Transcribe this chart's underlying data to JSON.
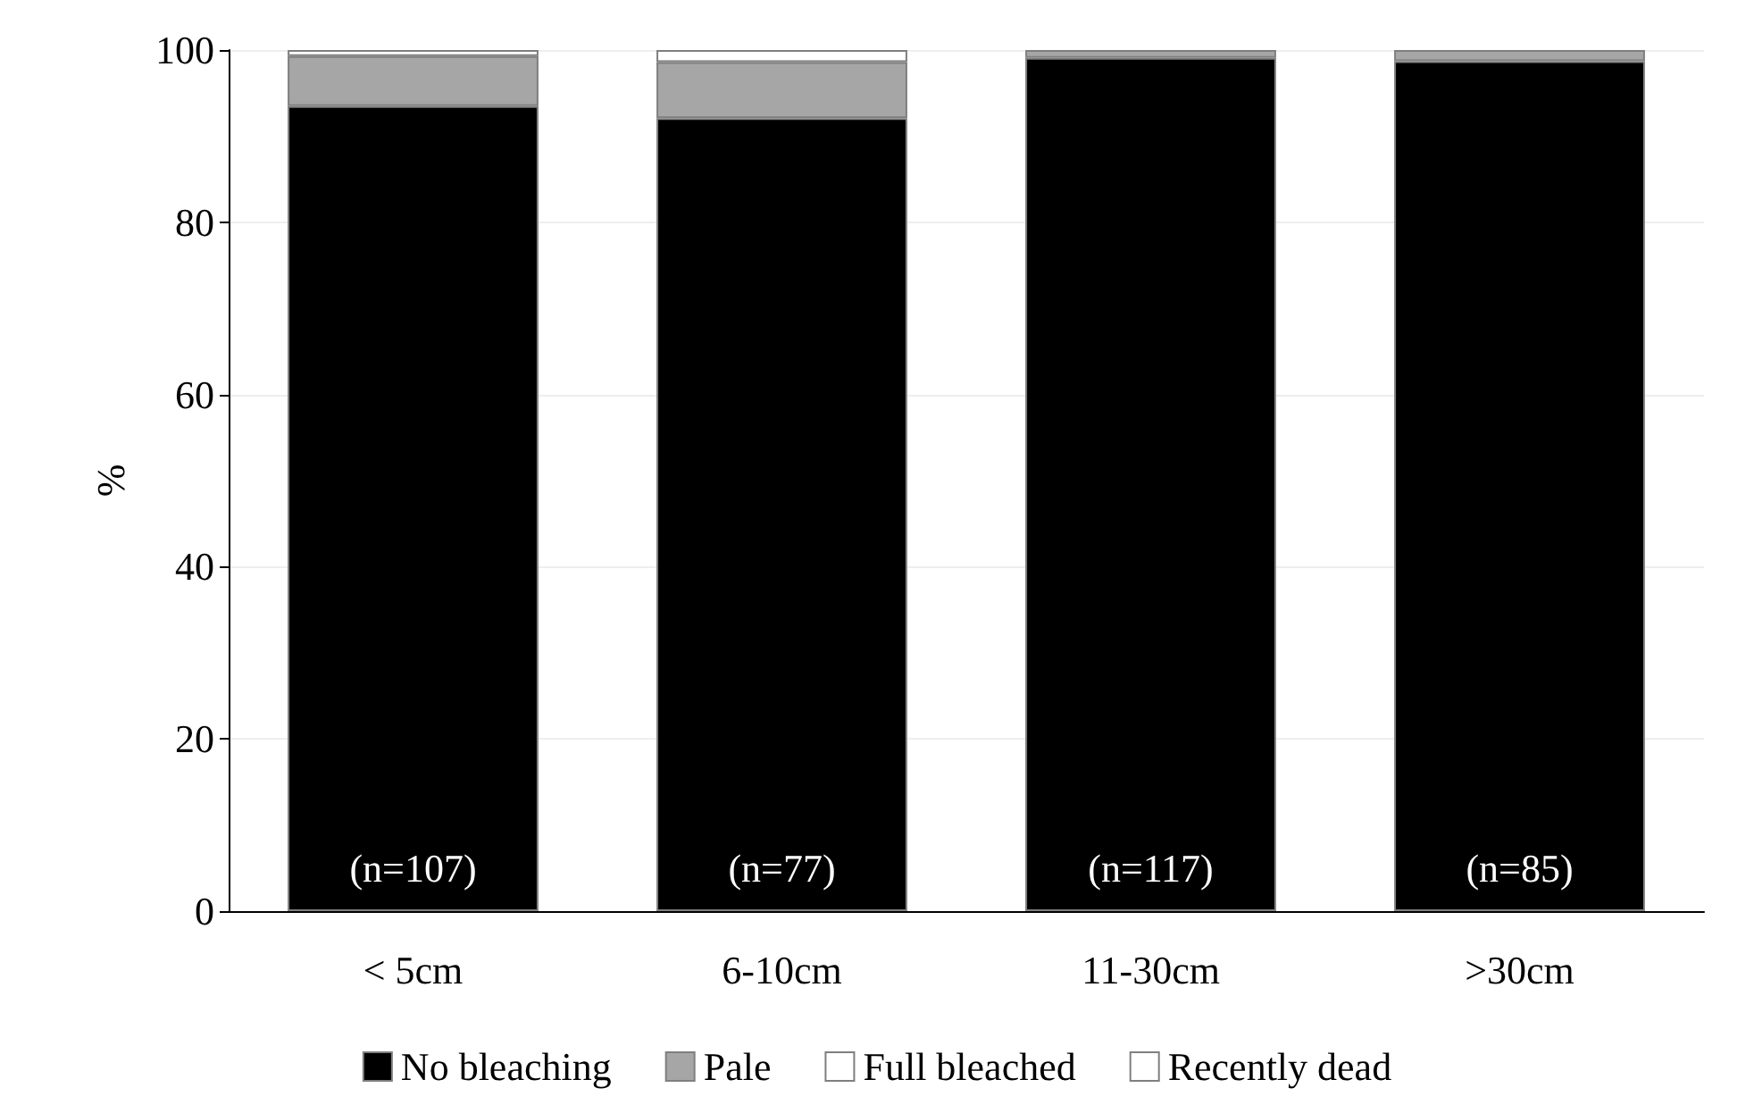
{
  "chart_data": {
    "type": "bar",
    "stacked": true,
    "ylabel": "%",
    "categories": [
      "< 5cm",
      "6-10cm",
      "11-30cm",
      ">30cm"
    ],
    "series": [
      {
        "name": "No bleaching",
        "color": "#000000",
        "values": [
          93.5,
          92.1,
          99.1,
          98.7
        ]
      },
      {
        "name": "Pale",
        "color": "#a6a6a6",
        "values": [
          5.8,
          6.5,
          0.9,
          1.3
        ]
      },
      {
        "name": "Full bleached",
        "color": "#ffffff",
        "values": [
          0.7,
          1.4,
          0,
          0
        ]
      },
      {
        "name": "Recently dead",
        "color": "#ffffff",
        "values": [
          0,
          0,
          0,
          0
        ]
      }
    ],
    "annotations": [
      "(n=107)",
      "(n=77)",
      "(n=117)",
      "(n=85)"
    ],
    "ylim": [
      0,
      100
    ],
    "yticks": [
      0,
      20,
      40,
      60,
      80,
      100
    ],
    "grid": "y",
    "legend": "bottom"
  }
}
